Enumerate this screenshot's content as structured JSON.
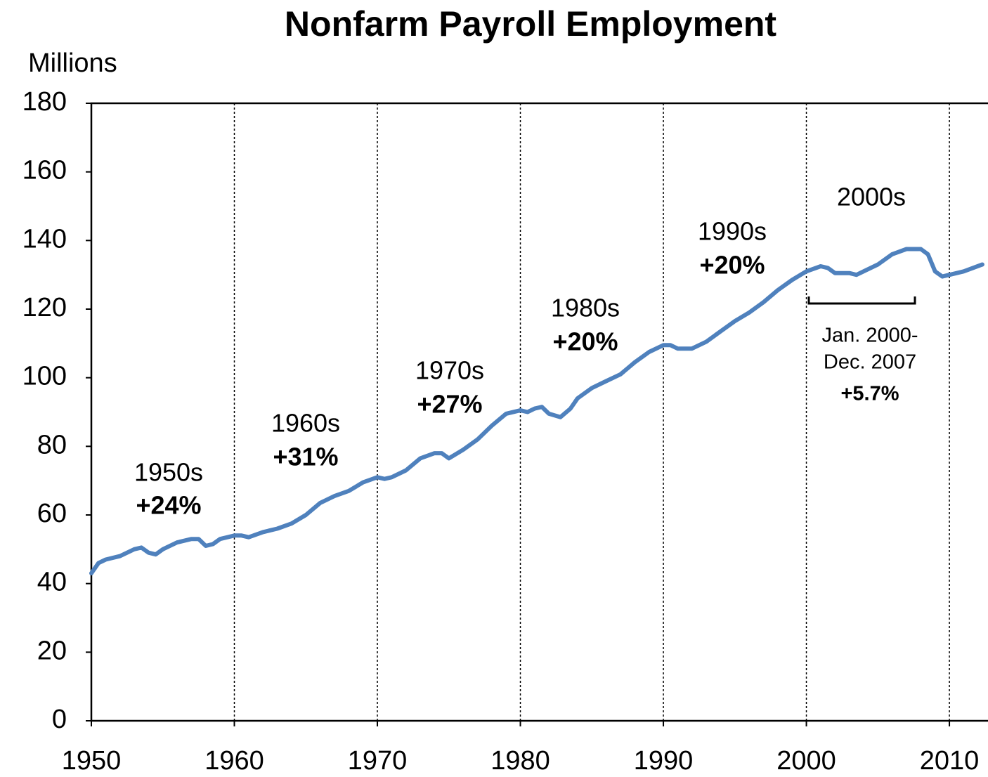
{
  "chart_data": {
    "type": "line",
    "title": "Nonfarm Payroll Employment",
    "y_label": "Millions",
    "x": [
      1950,
      1950.5,
      1951,
      1952,
      1953,
      1953.5,
      1954,
      1954.5,
      1955,
      1956,
      1957,
      1957.5,
      1958,
      1958.5,
      1959,
      1960,
      1960.5,
      1961,
      1962,
      1963,
      1964,
      1965,
      1966,
      1967,
      1968,
      1969,
      1970,
      1970.5,
      1971,
      1972,
      1973,
      1974,
      1974.5,
      1975,
      1976,
      1977,
      1978,
      1979,
      1980,
      1980.5,
      1981,
      1981.5,
      1982,
      1982.8,
      1983.5,
      1984,
      1985,
      1986,
      1987,
      1988,
      1989,
      1990,
      1990.5,
      1991,
      1992,
      1993,
      1994,
      1995,
      1996,
      1997,
      1998,
      1999,
      2000,
      2001,
      2001.5,
      2002,
      2003,
      2003.5,
      2004,
      2005,
      2006,
      2007,
      2008,
      2008.5,
      2009,
      2009.5,
      2010,
      2011,
      2012.3
    ],
    "values": [
      43,
      46,
      47,
      48,
      50,
      50.5,
      49,
      48.5,
      50,
      52,
      53,
      53,
      51,
      51.5,
      53,
      54,
      54,
      53.5,
      55,
      56,
      57.5,
      60,
      63.5,
      65.5,
      67,
      69.5,
      71,
      70.5,
      71,
      73,
      76.5,
      78,
      78,
      76.5,
      79,
      82,
      86,
      89.5,
      90.5,
      90,
      91,
      91.5,
      89.5,
      88.5,
      91,
      94,
      97,
      99,
      101,
      104.5,
      107.5,
      109.5,
      109.5,
      108.5,
      108.5,
      110.5,
      113.5,
      116.5,
      119,
      122,
      125.5,
      128.5,
      131,
      132.5,
      132,
      130.5,
      130.5,
      130,
      131,
      133,
      136,
      137.5,
      137.5,
      136,
      131,
      129.5,
      130,
      131,
      133
    ],
    "color": "#4f81bd",
    "xlim": [
      1950,
      2012.7
    ],
    "xticks": [
      1950,
      1960,
      1970,
      1980,
      1990,
      2000,
      2010
    ],
    "ylim": [
      0,
      180
    ],
    "yticks": [
      0,
      20,
      40,
      60,
      80,
      100,
      120,
      140,
      160,
      180
    ],
    "grid_x": true,
    "annotations": [
      "1950s",
      "+24%",
      "1960s",
      "+31%",
      "1970s",
      "+27%",
      "1980s",
      "+20%",
      "1990s",
      "+20%",
      "2000s",
      "Jan. 2000-",
      "Dec. 2007",
      "+5.7%"
    ]
  }
}
